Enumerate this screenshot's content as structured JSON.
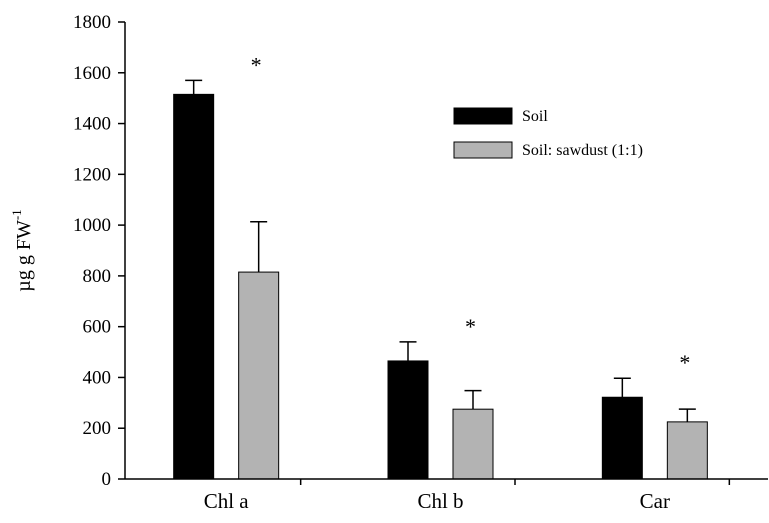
{
  "chart_data": {
    "type": "bar",
    "categories": [
      "Chl a",
      "Chl b",
      "Car"
    ],
    "series": [
      {
        "name": "Soil",
        "color": "#000000",
        "values": [
          1515,
          465,
          322
        ],
        "errors": [
          55,
          75,
          75
        ]
      },
      {
        "name": "Soil: sawdust (1:1)",
        "color": "#b3b3b3",
        "values": [
          815,
          275,
          225
        ],
        "errors": [
          198,
          73,
          50
        ]
      }
    ],
    "significance": [
      {
        "category": "Chl a",
        "mark": "*"
      },
      {
        "category": "Chl b",
        "mark": "*"
      },
      {
        "category": "Car",
        "mark": "*"
      }
    ],
    "ylabel": {
      "base": "µg g FW",
      "superscript": "-1"
    },
    "xlabel": "",
    "ylim": [
      0,
      1800
    ],
    "yticks": [
      0,
      200,
      400,
      600,
      800,
      1000,
      1200,
      1400,
      1600,
      1800
    ],
    "grid": false,
    "legend_position": "top-right"
  }
}
